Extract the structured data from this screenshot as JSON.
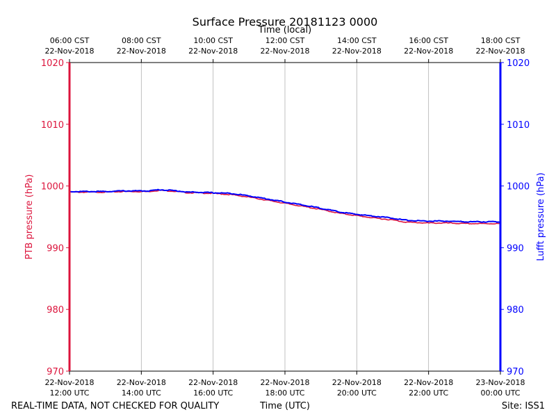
{
  "chart_data": {
    "type": "line",
    "title": "Surface Pressure 20181123 0000",
    "top_axis_label": "Time (local)",
    "xlabel": "Time (UTC)",
    "ylabel_left": "PTB pressure (hPa)",
    "ylabel_right": "Lufft pressure (hPa)",
    "ylim": [
      970,
      1020
    ],
    "yticks": [
      970,
      980,
      990,
      1000,
      1010,
      1020
    ],
    "xlim_hours_utc": [
      12,
      24
    ],
    "grid": "vertical",
    "bottom_ticks": [
      {
        "hour": 12,
        "date": "22-Nov-2018",
        "time": "12:00 UTC"
      },
      {
        "hour": 14,
        "date": "22-Nov-2018",
        "time": "14:00 UTC"
      },
      {
        "hour": 16,
        "date": "22-Nov-2018",
        "time": "16:00 UTC"
      },
      {
        "hour": 18,
        "date": "22-Nov-2018",
        "time": "18:00 UTC"
      },
      {
        "hour": 20,
        "date": "22-Nov-2018",
        "time": "20:00 UTC"
      },
      {
        "hour": 22,
        "date": "22-Nov-2018",
        "time": "22:00 UTC"
      },
      {
        "hour": 24,
        "date": "23-Nov-2018",
        "time": "00:00 UTC"
      }
    ],
    "top_ticks": [
      {
        "hour": 12,
        "time": "06:00 CST",
        "date": "22-Nov-2018"
      },
      {
        "hour": 14,
        "time": "08:00 CST",
        "date": "22-Nov-2018"
      },
      {
        "hour": 16,
        "time": "10:00 CST",
        "date": "22-Nov-2018"
      },
      {
        "hour": 18,
        "time": "12:00 CST",
        "date": "22-Nov-2018"
      },
      {
        "hour": 20,
        "time": "14:00 CST",
        "date": "22-Nov-2018"
      },
      {
        "hour": 22,
        "time": "16:00 CST",
        "date": "22-Nov-2018"
      },
      {
        "hour": 24,
        "time": "18:00 CST",
        "date": "22-Nov-2018"
      }
    ],
    "series": [
      {
        "name": "PTB pressure",
        "color": "#dc143c",
        "x": [
          12.0,
          12.5,
          13.0,
          13.5,
          14.0,
          14.2,
          14.5,
          14.8,
          15.0,
          15.3,
          15.5,
          16.0,
          16.5,
          17.0,
          17.5,
          18.0,
          18.5,
          19.0,
          19.5,
          20.0,
          20.5,
          21.0,
          21.3,
          21.5,
          22.0,
          22.5,
          23.0,
          23.5,
          24.0
        ],
        "values": [
          999.0,
          999.0,
          999.0,
          999.1,
          999.1,
          999.1,
          999.3,
          999.2,
          999.1,
          998.9,
          998.9,
          998.8,
          998.6,
          998.2,
          997.7,
          997.2,
          996.7,
          996.2,
          995.6,
          995.2,
          994.8,
          994.5,
          994.2,
          994.1,
          994.0,
          994.0,
          993.9,
          993.9,
          993.9
        ]
      },
      {
        "name": "Lufft pressure",
        "color": "#0000ff",
        "x": [
          12.0,
          12.5,
          13.0,
          13.5,
          14.0,
          14.2,
          14.5,
          14.8,
          15.0,
          15.3,
          15.5,
          16.0,
          16.5,
          17.0,
          17.5,
          18.0,
          18.5,
          19.0,
          19.5,
          20.0,
          20.5,
          21.0,
          21.3,
          21.5,
          22.0,
          22.5,
          23.0,
          23.5,
          24.0
        ],
        "values": [
          999.1,
          999.1,
          999.1,
          999.2,
          999.2,
          999.2,
          999.4,
          999.3,
          999.2,
          999.0,
          999.0,
          998.9,
          998.8,
          998.4,
          997.9,
          997.4,
          996.9,
          996.4,
          995.8,
          995.4,
          995.1,
          994.8,
          994.5,
          994.4,
          994.3,
          994.3,
          994.2,
          994.2,
          994.2
        ]
      }
    ]
  },
  "footer": {
    "left": "REAL-TIME DATA, NOT CHECKED FOR QUALITY",
    "center": "Time (UTC)",
    "right": "Site: ISS1"
  }
}
